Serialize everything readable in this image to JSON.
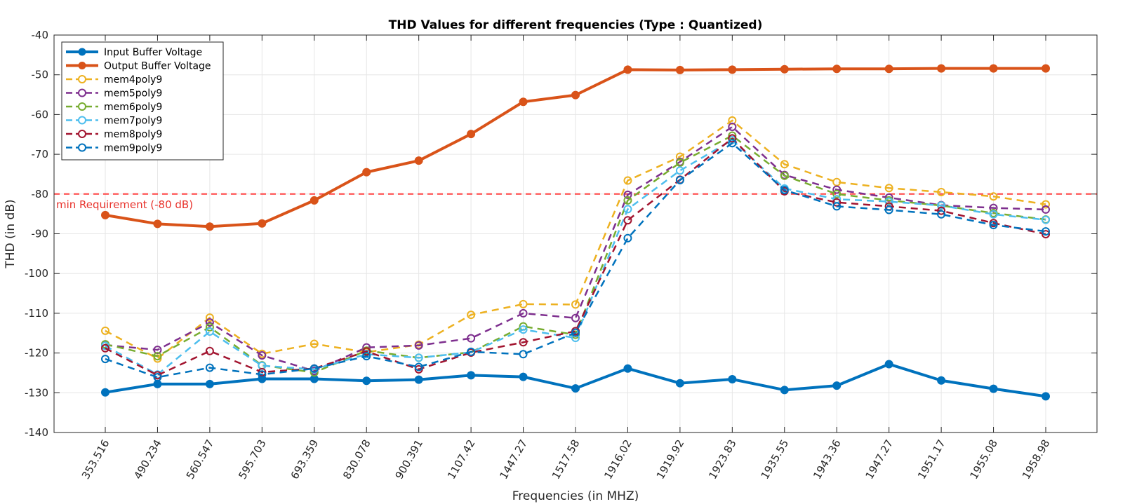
{
  "chart_data": {
    "type": "line",
    "title": "THD Values for different frequencies (Type : Quantized)",
    "xlabel": "Frequencies (in MHZ)",
    "ylabel": "THD (in dB)",
    "ylim": [
      -140,
      -40
    ],
    "yticks": [
      -140,
      -130,
      -120,
      -110,
      -100,
      -90,
      -80,
      -70,
      -60,
      -50,
      -40
    ],
    "grid": true,
    "legend_position": "top-left",
    "categories": [
      "353.516",
      "490.234",
      "560.547",
      "595.703",
      "693.359",
      "830.078",
      "900.391",
      "1107.42",
      "1447.27",
      "1517.58",
      "1916.02",
      "1919.92",
      "1923.83",
      "1935.55",
      "1943.36",
      "1947.27",
      "1951.17",
      "1955.08",
      "1958.98"
    ],
    "series": [
      {
        "name": "Input Buffer Voltage",
        "color": "#0072BD",
        "style": "solid",
        "width": 4,
        "marker": "filled",
        "values": [
          -129.9,
          -127.8,
          -127.8,
          -126.5,
          -126.5,
          -127.0,
          -126.7,
          -125.6,
          -126.0,
          -128.9,
          -123.9,
          -127.6,
          -126.6,
          -129.3,
          -128.2,
          -122.8,
          -126.9,
          -129.0,
          -130.9
        ]
      },
      {
        "name": "Output Buffer Voltage",
        "color": "#D95319",
        "style": "solid",
        "width": 4,
        "marker": "filled",
        "values": [
          -85.3,
          -87.5,
          -88.2,
          -87.4,
          -81.6,
          -74.5,
          -71.6,
          -64.9,
          -56.8,
          -55.1,
          -48.7,
          -48.8,
          -48.7,
          -48.6,
          -48.5,
          -48.5,
          -48.4,
          -48.4,
          -48.4
        ]
      },
      {
        "name": "mem4poly9",
        "color": "#EDB120",
        "style": "dashed",
        "width": 2.5,
        "marker": "open",
        "values": [
          -114.4,
          -121.4,
          -111.1,
          -120.2,
          -117.7,
          -119.8,
          -117.9,
          -110.4,
          -107.7,
          -107.8,
          -76.6,
          -70.6,
          -61.5,
          -72.5,
          -77.0,
          -78.5,
          -79.5,
          -80.6,
          -82.6
        ]
      },
      {
        "name": "mem5poly9",
        "color": "#7E2F8E",
        "style": "dashed",
        "width": 2.5,
        "marker": "open",
        "values": [
          -118.0,
          -119.2,
          -112.3,
          -120.6,
          -124.5,
          -118.6,
          -118.1,
          -116.3,
          -110.0,
          -111.2,
          -80.2,
          -71.9,
          -63.1,
          -75.2,
          -78.9,
          -80.9,
          -82.8,
          -83.5,
          -83.9
        ]
      },
      {
        "name": "mem6poly9",
        "color": "#77AC30",
        "style": "dashed",
        "width": 2.5,
        "marker": "open",
        "values": [
          -117.8,
          -120.8,
          -113.5,
          -123.1,
          -124.9,
          -119.4,
          -121.2,
          -119.8,
          -113.3,
          -115.4,
          -81.6,
          -72.1,
          -65.3,
          -75.4,
          -80.0,
          -81.6,
          -82.9,
          -84.8,
          -86.4
        ]
      },
      {
        "name": "mem7poly9",
        "color": "#4DBEEE",
        "style": "dashed",
        "width": 2.5,
        "marker": "open",
        "values": [
          -118.2,
          -125.4,
          -114.6,
          -123.2,
          -124.1,
          -120.3,
          -121.2,
          -119.8,
          -114.1,
          -116.2,
          -83.8,
          -74.1,
          -66.4,
          -78.6,
          -81.3,
          -81.9,
          -82.9,
          -85.1,
          -86.5
        ]
      },
      {
        "name": "mem8poly9",
        "color": "#A2142F",
        "style": "dashed",
        "width": 2.5,
        "marker": "open",
        "values": [
          -118.8,
          -125.6,
          -119.5,
          -124.8,
          -123.9,
          -119.6,
          -124.1,
          -119.9,
          -117.3,
          -114.5,
          -86.6,
          -76.4,
          -66.0,
          -79.3,
          -82.1,
          -83.1,
          -84.2,
          -87.3,
          -90.1
        ]
      },
      {
        "name": "mem9poly9",
        "color": "#0072BD",
        "style": "dashed",
        "width": 2.5,
        "marker": "open",
        "values": [
          -121.5,
          -126.1,
          -123.7,
          -125.4,
          -123.9,
          -120.8,
          -123.5,
          -119.7,
          -120.3,
          -114.9,
          -91.1,
          -76.5,
          -67.2,
          -79.0,
          -83.1,
          -84.0,
          -85.1,
          -87.8,
          -89.4
        ]
      }
    ],
    "reference_line": {
      "value": -80,
      "label": "min Requirement (-80 dB)",
      "color": "#FF4040"
    }
  }
}
